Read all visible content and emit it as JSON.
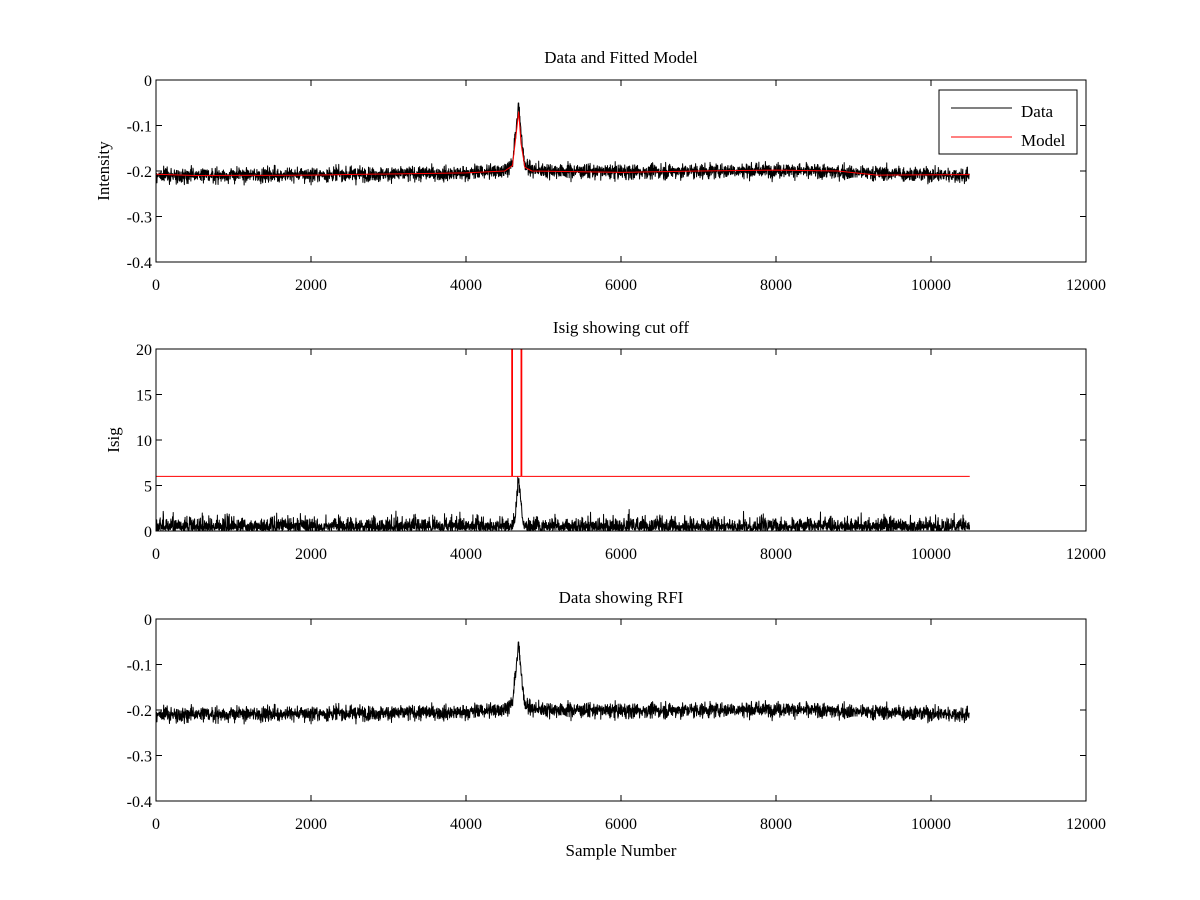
{
  "chart_data": [
    {
      "type": "line",
      "title": "Data and Fitted Model",
      "xlabel": "",
      "ylabel": "Intensity",
      "xlim": [
        0,
        12000
      ],
      "ylim": [
        -0.4,
        0
      ],
      "xticks": [
        0,
        2000,
        4000,
        6000,
        8000,
        10000,
        12000
      ],
      "yticks": [
        -0.4,
        -0.3,
        -0.2,
        -0.1,
        0
      ],
      "ytick_labels": [
        "-0.4",
        "-0.3",
        "-0.2",
        "-0.1",
        "0"
      ],
      "legend": {
        "position": "top-right",
        "entries": [
          "Data",
          "Model"
        ]
      },
      "series": [
        {
          "name": "Data",
          "color": "#000000",
          "kind": "noisy",
          "n_samples": 10500,
          "baseline": [
            [
              0,
              -0.21
            ],
            [
              2000,
              -0.208
            ],
            [
              4000,
              -0.205
            ],
            [
              4500,
              -0.197
            ],
            [
              4600,
              -0.185
            ],
            [
              4650,
              -0.1
            ],
            [
              4680,
              -0.055
            ],
            [
              4710,
              -0.12
            ],
            [
              4760,
              -0.185
            ],
            [
              4850,
              -0.198
            ],
            [
              6000,
              -0.202
            ],
            [
              8000,
              -0.198
            ],
            [
              9000,
              -0.203
            ],
            [
              10500,
              -0.21
            ]
          ],
          "noise_amplitude": 0.025
        },
        {
          "name": "Model",
          "color": "#ff0000",
          "kind": "polyline",
          "points": [
            [
              0,
              -0.207
            ],
            [
              500,
              -0.21
            ],
            [
              2000,
              -0.209
            ],
            [
              4000,
              -0.204
            ],
            [
              4500,
              -0.2
            ],
            [
              4600,
              -0.188
            ],
            [
              4650,
              -0.115
            ],
            [
              4680,
              -0.07
            ],
            [
              4710,
              -0.14
            ],
            [
              4760,
              -0.192
            ],
            [
              4850,
              -0.2
            ],
            [
              6000,
              -0.203
            ],
            [
              7000,
              -0.2
            ],
            [
              8000,
              -0.198
            ],
            [
              8800,
              -0.2
            ],
            [
              9300,
              -0.209
            ],
            [
              10500,
              -0.208
            ]
          ]
        }
      ]
    },
    {
      "type": "line",
      "title": "Isig showing cut off",
      "xlabel": "",
      "ylabel": "Isig",
      "xlim": [
        0,
        12000
      ],
      "ylim": [
        0,
        20
      ],
      "xticks": [
        0,
        2000,
        4000,
        6000,
        8000,
        10000,
        12000
      ],
      "yticks": [
        0,
        5,
        10,
        15,
        20
      ],
      "ytick_labels": [
        "0",
        "5",
        "10",
        "15",
        "20"
      ],
      "series": [
        {
          "name": "Isig",
          "color": "#000000",
          "kind": "rectified",
          "n_samples": 10500,
          "noise_amplitude": 1.3,
          "peak": {
            "center": 4680,
            "height": 5.5,
            "width": 40
          }
        },
        {
          "name": "Cut off",
          "color": "#ff0000",
          "kind": "polyline",
          "points": [
            [
              0,
              6
            ],
            [
              4590,
              6
            ],
            [
              4590,
              20
            ],
            [
              4600,
              20
            ],
            [
              4600,
              6
            ],
            [
              4710,
              6
            ],
            [
              4710,
              20
            ],
            [
              4720,
              20
            ],
            [
              4720,
              6
            ],
            [
              10500,
              6
            ]
          ]
        }
      ]
    },
    {
      "type": "line",
      "title": "Data showing RFI",
      "xlabel": "Sample Number",
      "ylabel": "",
      "xlim": [
        0,
        12000
      ],
      "ylim": [
        -0.4,
        0
      ],
      "xticks": [
        0,
        2000,
        4000,
        6000,
        8000,
        10000,
        12000
      ],
      "yticks": [
        -0.4,
        -0.3,
        -0.2,
        -0.1,
        0
      ],
      "ytick_labels": [
        "-0.4",
        "-0.3",
        "-0.2",
        "-0.1",
        "0"
      ],
      "series": [
        {
          "name": "Data",
          "color": "#000000",
          "kind": "noisy",
          "n_samples": 10500,
          "baseline": [
            [
              0,
              -0.21
            ],
            [
              2000,
              -0.208
            ],
            [
              4000,
              -0.205
            ],
            [
              4500,
              -0.197
            ],
            [
              4600,
              -0.185
            ],
            [
              4650,
              -0.1
            ],
            [
              4680,
              -0.055
            ],
            [
              4710,
              -0.12
            ],
            [
              4760,
              -0.185
            ],
            [
              4850,
              -0.198
            ],
            [
              6000,
              -0.202
            ],
            [
              8000,
              -0.198
            ],
            [
              9000,
              -0.203
            ],
            [
              10500,
              -0.21
            ]
          ],
          "noise_amplitude": 0.025
        }
      ]
    }
  ]
}
